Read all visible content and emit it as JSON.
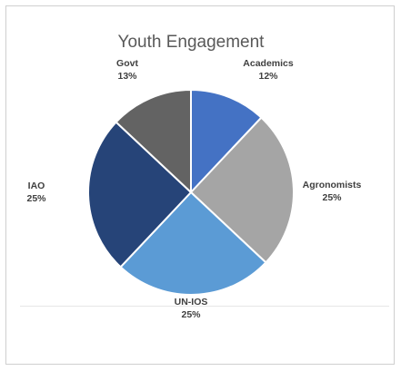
{
  "chart_data": {
    "type": "pie",
    "title": "Youth Engagement",
    "slices": [
      {
        "label": "Academics",
        "value": 12,
        "percent_label": "12%",
        "color": "#4472C4"
      },
      {
        "label": "Agronomists",
        "value": 25,
        "percent_label": "25%",
        "color": "#A5A5A5"
      },
      {
        "label": "UN-IOS",
        "value": 25,
        "percent_label": "25%",
        "color": "#5B9BD5"
      },
      {
        "label": "IAO",
        "value": 25,
        "percent_label": "25%",
        "color": "#264478"
      },
      {
        "label": "Govt",
        "value": 13,
        "percent_label": "13%",
        "color": "#636363"
      }
    ],
    "slice_border_color": "#ffffff",
    "legend": "none",
    "data_labels": "category name and percentage, outside"
  }
}
